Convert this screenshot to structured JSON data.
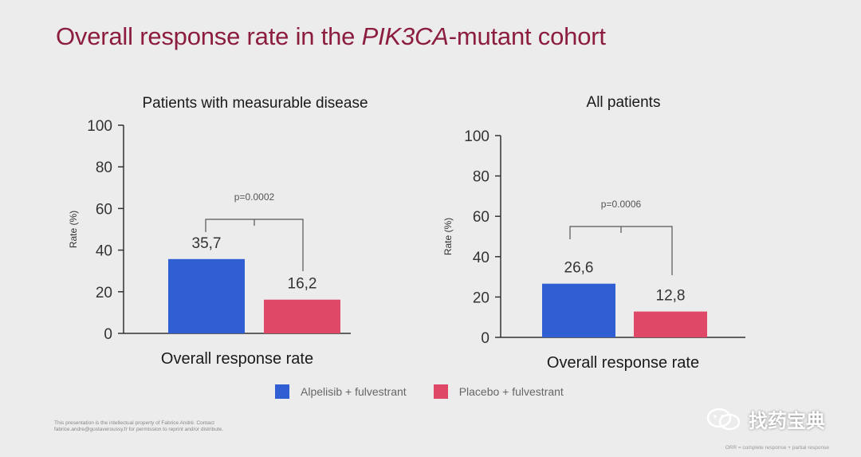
{
  "title": {
    "part1": "Overall response rate in the ",
    "italic": "PIK3CA",
    "part2": "-mutant cohort"
  },
  "colors": {
    "title": "#8c1d3f",
    "series1": "#2f5fd3",
    "series2": "#e04867",
    "axis": "#333333",
    "text": "#222222"
  },
  "chart_data": [
    {
      "type": "bar",
      "title": "Patients with measurable disease",
      "xlabel": "Overall response rate",
      "ylabel": "Rate (%)",
      "ylim": [
        0,
        100
      ],
      "yticks": [
        "0",
        "20",
        "40",
        "60",
        "80",
        "100"
      ],
      "series": [
        {
          "name": "Alpelisib + fulvestrant",
          "value": 35.7,
          "label": "35,7"
        },
        {
          "name": "Placebo + fulvestrant",
          "value": 16.2,
          "label": "16,2"
        }
      ],
      "pvalue": "p=0.0002"
    },
    {
      "type": "bar",
      "title": "All patients",
      "xlabel": "Overall response rate",
      "ylabel": "Rate (%)",
      "ylim": [
        0,
        100
      ],
      "yticks": [
        "0",
        "20",
        "40",
        "60",
        "80",
        "100"
      ],
      "series": [
        {
          "name": "Alpelisib + fulvestrant",
          "value": 26.6,
          "label": "26,6"
        },
        {
          "name": "Placebo + fulvestrant",
          "value": 12.8,
          "label": "12,8"
        }
      ],
      "pvalue": "p=0.0006"
    }
  ],
  "legend": [
    {
      "label": "Alpelisib + fulvestrant",
      "color": "#2f5fd3"
    },
    {
      "label": "Placebo + fulvestrant",
      "color": "#e04867"
    }
  ],
  "footnote": {
    "left": "This presentation is the intellectual property of Fabrice André. Contact fabrice.andre@gustaveroussy.fr for permission to reprint and/or distribute.",
    "right": "ORR = complete response + partial response"
  },
  "watermark": {
    "text": "找药宝典"
  }
}
